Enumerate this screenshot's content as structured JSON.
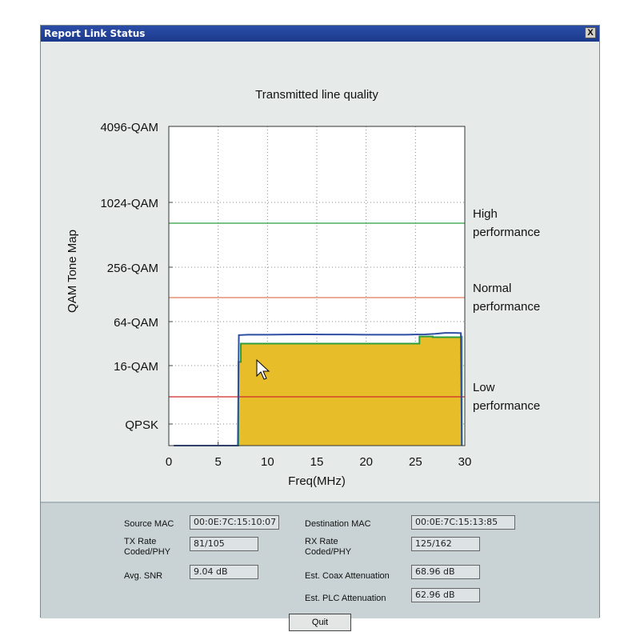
{
  "window": {
    "title": "Report Link Status",
    "close_label": "X"
  },
  "chart_data": {
    "type": "line",
    "title": "Transmitted line quality",
    "xlabel": "Freq(MHz)",
    "ylabel": "QAM Tone Map",
    "xlim": [
      0,
      30
    ],
    "x_ticks": [
      0,
      5,
      10,
      15,
      20,
      25,
      30
    ],
    "y_levels": [
      "QPSK",
      "16-QAM",
      "64-QAM",
      "256-QAM",
      "1024-QAM",
      "4096-QAM"
    ],
    "grid": true,
    "reference_lines": [
      {
        "label_line1": "High",
        "label_line2": "performance",
        "color": "#2e9e3c"
      },
      {
        "label_line1": "Normal",
        "label_line2": "performance",
        "color": "#e07a5a"
      },
      {
        "label_line1": "Low",
        "label_line2": "performance",
        "color": "#d02828"
      }
    ],
    "series": [
      {
        "color": "#2e4ea2",
        "x": [
          0.5,
          7,
          7.1,
          8,
          10,
          12,
          14,
          16,
          18,
          20,
          22,
          24,
          25,
          26,
          27,
          28,
          29,
          29.6,
          29.7
        ],
        "y": [
          0,
          0,
          10.45,
          10.6,
          10.6,
          10.65,
          10.7,
          10.65,
          10.65,
          10.6,
          10.6,
          10.6,
          10.65,
          10.7,
          10.9,
          11.2,
          11.2,
          11.15,
          0
        ]
      },
      {
        "color": "#2e9e3c",
        "fill": "#e8bd2a",
        "x": [
          7,
          7.05,
          7.3,
          25.3,
          25.4,
          26.7,
          26.75,
          29.6,
          29.7
        ],
        "y": [
          0,
          4.5,
          8.0,
          8.0,
          10.0,
          10.0,
          9.8,
          10.0,
          0
        ]
      }
    ]
  },
  "panel": {
    "source_mac_label": "Source MAC",
    "source_mac": "00:0E:7C:15:10:07",
    "dest_mac_label": "Destination MAC",
    "dest_mac": "00:0E:7C:15:13:85",
    "tx_rate_label": "TX Rate",
    "tx_rate_label2": "Coded/PHY",
    "tx_rate": "81/105",
    "rx_rate_label": "RX Rate",
    "rx_rate_label2": "Coded/PHY",
    "rx_rate": "125/162",
    "snr_label": "Avg. SNR",
    "snr": "9.04 dB",
    "coax_label": "Est. Coax Attenuation",
    "coax": "68.96 dB",
    "plc_label": "Est. PLC Attenuation",
    "plc": "62.96 dB",
    "quit_label": "Quit"
  }
}
